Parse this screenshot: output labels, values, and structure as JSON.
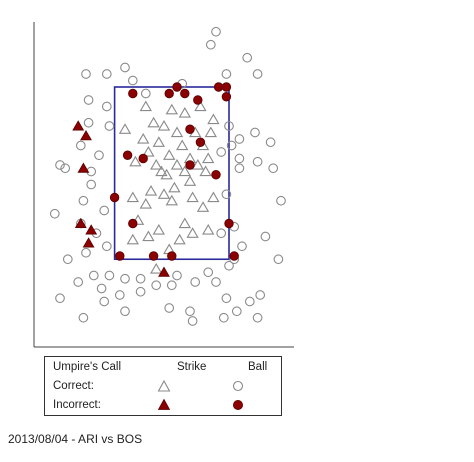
{
  "chart_data": {
    "type": "scatter",
    "title": "",
    "xlabel": "",
    "ylabel": "",
    "xlim": [
      0,
      100
    ],
    "ylim": [
      0,
      100
    ],
    "strike_zone": {
      "x": [
        31,
        75
      ],
      "y": [
        27,
        80
      ]
    },
    "legend": {
      "header": "Umpire's Call",
      "col_strike": "Strike",
      "col_ball": "Ball",
      "row_correct": "Correct:",
      "row_incorrect": "Incorrect:"
    },
    "colors": {
      "correct": "#8a8a8a",
      "incorrect": "#8b0000",
      "incorrect_stroke": "#5a0000",
      "zone": "#2a2a9a"
    },
    "series": [
      {
        "name": "Correct Strike",
        "points": [
          [
            43,
            74
          ],
          [
            53,
            73
          ],
          [
            64,
            74
          ],
          [
            58,
            72
          ],
          [
            69,
            70
          ],
          [
            46,
            69
          ],
          [
            50,
            68
          ],
          [
            35,
            67
          ],
          [
            55,
            66
          ],
          [
            62,
            66
          ],
          [
            68,
            66
          ],
          [
            42,
            64
          ],
          [
            48,
            63
          ],
          [
            57,
            62
          ],
          [
            65,
            62
          ],
          [
            44,
            60
          ],
          [
            52,
            59
          ],
          [
            60,
            58
          ],
          [
            67,
            58
          ],
          [
            39,
            57
          ],
          [
            47,
            56
          ],
          [
            55,
            56
          ],
          [
            63,
            56
          ],
          [
            49,
            54
          ],
          [
            58,
            54
          ],
          [
            66,
            54
          ],
          [
            51,
            53
          ],
          [
            60,
            51
          ],
          [
            54,
            49
          ],
          [
            45,
            48
          ],
          [
            50,
            47
          ],
          [
            38,
            46
          ],
          [
            61,
            46
          ],
          [
            69,
            46
          ],
          [
            53,
            45
          ],
          [
            43,
            44
          ],
          [
            65,
            43
          ],
          [
            40,
            39
          ],
          [
            58,
            38
          ],
          [
            48,
            36
          ],
          [
            61,
            35
          ],
          [
            44,
            34
          ],
          [
            56,
            33
          ],
          [
            38,
            33
          ],
          [
            67,
            36
          ],
          [
            52,
            30
          ],
          [
            47,
            24
          ]
        ]
      },
      {
        "name": "Correct Ball",
        "points": [
          [
            70,
            97
          ],
          [
            68,
            93
          ],
          [
            82,
            89
          ],
          [
            35,
            86
          ],
          [
            20,
            84
          ],
          [
            28,
            84
          ],
          [
            74,
            84
          ],
          [
            86,
            84
          ],
          [
            38,
            82
          ],
          [
            57,
            81
          ],
          [
            43,
            78
          ],
          [
            21,
            76
          ],
          [
            28,
            74
          ],
          [
            29,
            68
          ],
          [
            21,
            69
          ],
          [
            75,
            68
          ],
          [
            85,
            66
          ],
          [
            79,
            64
          ],
          [
            91,
            63
          ],
          [
            18,
            62
          ],
          [
            25,
            59
          ],
          [
            76,
            62
          ],
          [
            72,
            60
          ],
          [
            79,
            58
          ],
          [
            86,
            57
          ],
          [
            10,
            56
          ],
          [
            12,
            55
          ],
          [
            22,
            54
          ],
          [
            79,
            55
          ],
          [
            92,
            55
          ],
          [
            22,
            50
          ],
          [
            74,
            47
          ],
          [
            19,
            45
          ],
          [
            95,
            45
          ],
          [
            27,
            42
          ],
          [
            8,
            41
          ],
          [
            18,
            38
          ],
          [
            24,
            35
          ],
          [
            77,
            37
          ],
          [
            72,
            35
          ],
          [
            89,
            34
          ],
          [
            28,
            31
          ],
          [
            80,
            31
          ],
          [
            20,
            29
          ],
          [
            13,
            27
          ],
          [
            94,
            27
          ],
          [
            77,
            27
          ],
          [
            75,
            25
          ],
          [
            67,
            23
          ],
          [
            23,
            22
          ],
          [
            29,
            22
          ],
          [
            55,
            22
          ],
          [
            35,
            21
          ],
          [
            41,
            21
          ],
          [
            17,
            20
          ],
          [
            26,
            18
          ],
          [
            33,
            16
          ],
          [
            47,
            19
          ],
          [
            53,
            19
          ],
          [
            62,
            20
          ],
          [
            70,
            20
          ],
          [
            41,
            17
          ],
          [
            10,
            15
          ],
          [
            27,
            14
          ],
          [
            74,
            15
          ],
          [
            83,
            14
          ],
          [
            52,
            12
          ],
          [
            35,
            11
          ],
          [
            60,
            11
          ],
          [
            78,
            11
          ],
          [
            19,
            9
          ],
          [
            61,
            8
          ],
          [
            87,
            16
          ],
          [
            73,
            9
          ],
          [
            86,
            9
          ]
        ]
      },
      {
        "name": "Incorrect Strike",
        "points": [
          [
            17,
            68
          ],
          [
            20,
            65
          ],
          [
            19,
            55
          ],
          [
            18,
            38
          ],
          [
            22,
            36
          ],
          [
            21,
            32
          ],
          [
            50,
            23
          ]
        ]
      },
      {
        "name": "Incorrect Ball",
        "points": [
          [
            55,
            80
          ],
          [
            71,
            80
          ],
          [
            58,
            78
          ],
          [
            74,
            80
          ],
          [
            38,
            78
          ],
          [
            52,
            78
          ],
          [
            63,
            76
          ],
          [
            74,
            77
          ],
          [
            60,
            67
          ],
          [
            64,
            63
          ],
          [
            60,
            56
          ],
          [
            36,
            59
          ],
          [
            42,
            58
          ],
          [
            70,
            53
          ],
          [
            31,
            46
          ],
          [
            75,
            38
          ],
          [
            38,
            38
          ],
          [
            46,
            28
          ],
          [
            53,
            28
          ],
          [
            77,
            28
          ],
          [
            33,
            28
          ]
        ]
      }
    ]
  },
  "caption": "2013/08/04 - ARI vs BOS"
}
